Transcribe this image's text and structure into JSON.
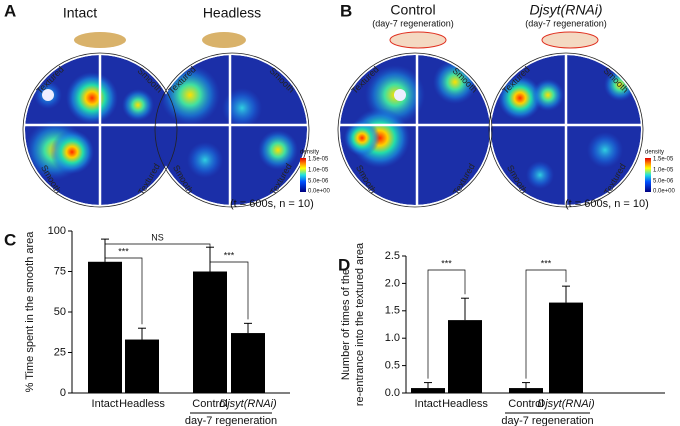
{
  "panel_a": {
    "letter": "A",
    "maps": [
      {
        "title": "Intact",
        "quadrant_labels": [
          "Textured",
          "Smooth",
          "Smooth",
          "Textured"
        ]
      },
      {
        "title": "Headless",
        "quadrant_labels": [
          "Textured",
          "Smooth",
          "Smooth",
          "Textured"
        ]
      }
    ],
    "colorbar": {
      "title": "density",
      "ticks": [
        "1.5e-05",
        "1.0e-05",
        "5.0e-06",
        "0.0e+00"
      ]
    },
    "note": "(t = 600s, n = 10)"
  },
  "panel_b": {
    "letter": "B",
    "maps": [
      {
        "title": "Control",
        "subtitle": "(day-7 regeneration)",
        "quadrant_labels": [
          "Textured",
          "Smooth",
          "Smooth",
          "Textured"
        ]
      },
      {
        "title": "Djsyt(RNAi)",
        "subtitle": "(day-7 regeneration)",
        "quadrant_labels": [
          "Textured",
          "Smooth",
          "Smooth",
          "Textured"
        ]
      }
    ],
    "colorbar": {
      "title": "density",
      "ticks": [
        "1.5e-05",
        "1.0e-05",
        "5.0e-06",
        "0.0e+00"
      ]
    },
    "note": "(t = 600s, n = 10)"
  },
  "chart_data": [
    {
      "type": "bar",
      "letter": "C",
      "ylabel_lines": [
        "% Time spent in the smooth area"
      ],
      "categories": [
        "Intact",
        "Headless",
        "Control",
        "Djsyt(RNAi)"
      ],
      "values": [
        81,
        33,
        75,
        37
      ],
      "errors": [
        14,
        7,
        15,
        6
      ],
      "color": "#000000",
      "ylim": [
        0,
        100
      ],
      "yticks": [
        0,
        25,
        50,
        75,
        100
      ],
      "group_label": "day-7 regeneration",
      "annotations": [
        "NS",
        "***",
        "***"
      ]
    },
    {
      "type": "bar",
      "letter": "D",
      "ylabel_lines": [
        "Number of times of the",
        "re-entrance into the textured area"
      ],
      "categories": [
        "Intact",
        "Headless",
        "Control",
        "Djsyt(RNAi)"
      ],
      "values": [
        0.09,
        1.33,
        0.09,
        1.65
      ],
      "errors": [
        0.1,
        0.4,
        0.1,
        0.3
      ],
      "color": "#000000",
      "ylim": [
        0,
        2.5
      ],
      "yticks": [
        {
          "value": 0,
          "label": "0.0"
        },
        0.5,
        {
          "value": 1,
          "label": "1.0"
        },
        1.5,
        {
          "value": 2,
          "label": "2.0"
        },
        2.5
      ],
      "group_label": "day-7 regeneration",
      "annotations": [
        "***",
        "***"
      ]
    }
  ]
}
